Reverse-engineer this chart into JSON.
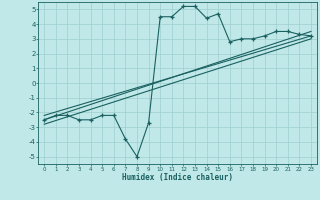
{
  "xlabel": "Humidex (Indice chaleur)",
  "ylabel": "",
  "bg_color": "#c0e8e8",
  "grid_color": "#9ecece",
  "line_color": "#1a6060",
  "xlim": [
    -0.5,
    23.5
  ],
  "ylim": [
    -5.5,
    5.5
  ],
  "xticks": [
    0,
    1,
    2,
    3,
    4,
    5,
    6,
    7,
    8,
    9,
    10,
    11,
    12,
    13,
    14,
    15,
    16,
    17,
    18,
    19,
    20,
    21,
    22,
    23
  ],
  "yticks": [
    -5,
    -4,
    -3,
    -2,
    -1,
    0,
    1,
    2,
    3,
    4,
    5
  ],
  "main_x": [
    0,
    1,
    2,
    3,
    4,
    5,
    6,
    7,
    8,
    9,
    10,
    11,
    12,
    13,
    14,
    15,
    16,
    17,
    18,
    19,
    20,
    21,
    22,
    23
  ],
  "main_y": [
    -2.5,
    -2.2,
    -2.2,
    -2.5,
    -2.5,
    -2.2,
    -2.2,
    -3.8,
    -5.0,
    -2.7,
    4.5,
    4.5,
    5.2,
    5.2,
    4.4,
    4.7,
    2.8,
    3.0,
    3.0,
    3.2,
    3.5,
    3.5,
    3.3,
    3.2
  ],
  "line1_x": [
    0,
    23
  ],
  "line1_y": [
    -2.5,
    3.5
  ],
  "line2_x": [
    0,
    23
  ],
  "line2_y": [
    -2.2,
    3.2
  ],
  "line3_x": [
    0,
    23
  ],
  "line3_y": [
    -2.8,
    3.0
  ]
}
